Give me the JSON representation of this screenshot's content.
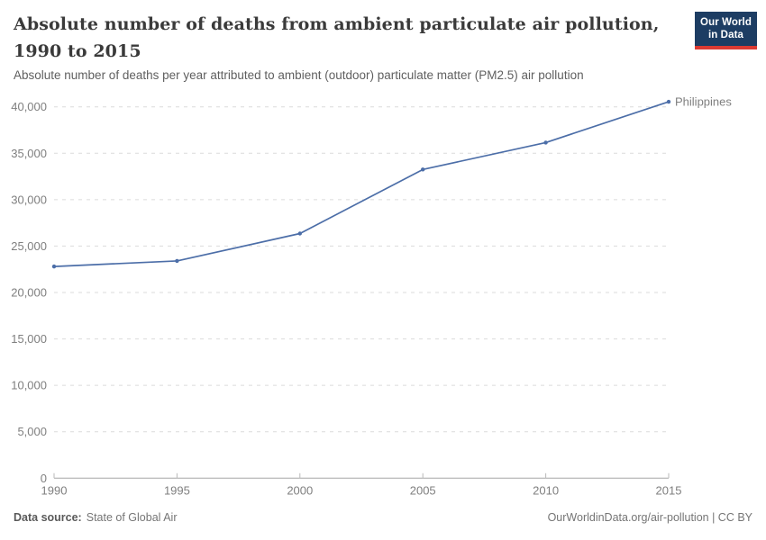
{
  "header": {
    "logo_line1": "Our World",
    "logo_line2": "in Data"
  },
  "footer": {
    "source_label": "Data source:",
    "source_value": "State of Global Air",
    "attribution": "OurWorldinData.org/air-pollution | CC BY"
  },
  "colors": {
    "line": "#4C6EA8",
    "logo_bg": "#1D3D63",
    "logo_bar": "#DC3A32",
    "grid": "#DBDBDB",
    "axis": "#A6A6A6",
    "axis_tick": "#B9B9B9",
    "tick_label": "#7F7F7F"
  },
  "chart_data": {
    "type": "line",
    "title": "Absolute number of deaths from ambient particulate air pollution, 1990 to 2015",
    "subtitle": "Absolute number of deaths per year attributed to ambient (outdoor) particulate matter (PM2.5) air pollution",
    "x": [
      1990,
      1995,
      2000,
      2005,
      2010,
      2015
    ],
    "series": [
      {
        "name": "Philippines",
        "color": "#4C6EA8",
        "values": [
          22800,
          23400,
          26350,
          33250,
          36150,
          40550
        ]
      }
    ],
    "xlabel": "",
    "ylabel": "",
    "ylim": [
      0,
      40000
    ],
    "yticks": [
      0,
      5000,
      10000,
      15000,
      20000,
      25000,
      30000,
      35000,
      40000
    ],
    "xticks": [
      1990,
      1995,
      2000,
      2005,
      2010,
      2015
    ],
    "grid": "horizontal-dashed",
    "legend_position": "line-end-label"
  }
}
